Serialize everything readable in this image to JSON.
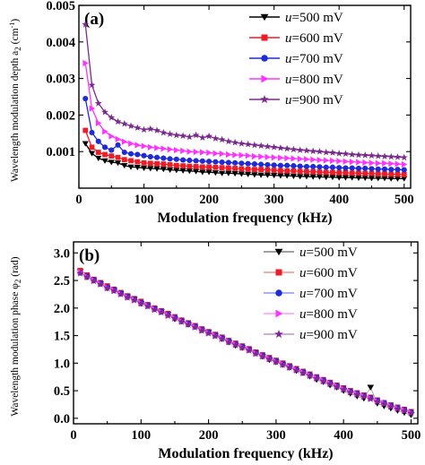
{
  "chart_data": [
    {
      "type": "line",
      "panel_label": "(a)",
      "xlabel": "Modulation frequency (kHz)",
      "ylabel": "Wavelength modulation depth a",
      "ylabel_sub": "2",
      "ylabel_unit_open": " (cm",
      "ylabel_unit_sup": "-1",
      "ylabel_unit_close": ")",
      "xlim": [
        0,
        510
      ],
      "ylim": [
        0,
        0.005
      ],
      "xticks": [
        0,
        100,
        200,
        300,
        400,
        500
      ],
      "xtick_labels": [
        "0",
        "100",
        "200",
        "300",
        "400",
        "500"
      ],
      "yticks": [
        0.001,
        0.002,
        0.003,
        0.004,
        0.005
      ],
      "ytick_labels": [
        "0.001",
        "0.002",
        "0.003",
        "0.004",
        "0.005"
      ],
      "legend_position": "top-right",
      "x": [
        10,
        20,
        30,
        40,
        50,
        60,
        70,
        80,
        90,
        100,
        110,
        120,
        130,
        140,
        150,
        160,
        170,
        180,
        190,
        200,
        210,
        220,
        230,
        240,
        250,
        260,
        270,
        280,
        290,
        300,
        310,
        320,
        330,
        340,
        350,
        360,
        370,
        380,
        390,
        400,
        410,
        420,
        430,
        440,
        450,
        460,
        470,
        480,
        490,
        500
      ],
      "series": [
        {
          "name_prefix": "u",
          "name_suffix": "=500 mV",
          "color": "#000000",
          "marker": "triangle-down",
          "values": [
            0.00122,
            0.00095,
            0.00082,
            0.00075,
            0.00071,
            0.00069,
            0.00062,
            0.00058,
            0.00057,
            0.00055,
            0.00054,
            0.00053,
            0.00052,
            0.0005,
            0.00049,
            0.00048,
            0.00047,
            0.00046,
            0.00044,
            0.00044,
            0.00042,
            0.00041,
            0.00041,
            0.0004,
            0.00039,
            0.00038,
            0.00037,
            0.00036,
            0.00036,
            0.00035,
            0.00034,
            0.00034,
            0.00033,
            0.00032,
            0.00032,
            0.00031,
            0.00031,
            0.0003,
            0.0003,
            0.00029,
            0.00029,
            0.00029,
            0.00028,
            0.00028,
            0.00027,
            0.00027,
            0.00027,
            0.00026,
            0.00026,
            0.00026
          ]
        },
        {
          "name_prefix": "u",
          "name_suffix": "=600 mV",
          "color": "#ee1c25",
          "marker": "square",
          "values": [
            0.00158,
            0.00112,
            0.00098,
            0.00092,
            0.00088,
            0.00084,
            0.00078,
            0.00075,
            0.00072,
            0.00069,
            0.00068,
            0.00067,
            0.00066,
            0.00064,
            0.00062,
            0.00061,
            0.0006,
            0.00059,
            0.00058,
            0.00058,
            0.00057,
            0.00056,
            0.00055,
            0.00054,
            0.00053,
            0.00052,
            0.00051,
            0.00051,
            0.0005,
            0.00049,
            0.00048,
            0.00047,
            0.00047,
            0.00046,
            0.00045,
            0.00045,
            0.00044,
            0.00043,
            0.00043,
            0.00042,
            0.00042,
            0.00041,
            0.00041,
            0.0004,
            0.0004,
            0.00039,
            0.00039,
            0.00038,
            0.00038,
            0.00037
          ]
        },
        {
          "name_prefix": "u",
          "name_suffix": "=700 mV",
          "color": "#1f2bd4",
          "marker": "circle",
          "values": [
            0.00245,
            0.00152,
            0.00128,
            0.00112,
            0.00104,
            0.00118,
            0.00098,
            0.00094,
            0.00092,
            0.00089,
            0.00086,
            0.00084,
            0.00082,
            0.0008,
            0.00079,
            0.00077,
            0.00076,
            0.00075,
            0.00074,
            0.00073,
            0.00072,
            0.00071,
            0.0007,
            0.00069,
            0.00068,
            0.00067,
            0.00066,
            0.00065,
            0.00064,
            0.00063,
            0.00062,
            0.00062,
            0.00061,
            0.0006,
            0.00059,
            0.00059,
            0.00058,
            0.00057,
            0.00057,
            0.00056,
            0.00055,
            0.00055,
            0.00054,
            0.00054,
            0.00053,
            0.00052,
            0.00052,
            0.00051,
            0.00051,
            0.0005
          ]
        },
        {
          "name_prefix": "u",
          "name_suffix": "=800 mV",
          "color": "#ff33ff",
          "marker": "triangle-right",
          "values": [
            0.00342,
            0.00218,
            0.00178,
            0.00155,
            0.00142,
            0.00134,
            0.00127,
            0.00122,
            0.00118,
            0.00115,
            0.00112,
            0.0011,
            0.00108,
            0.00106,
            0.00104,
            0.00102,
            0.001,
            0.00099,
            0.00098,
            0.00097,
            0.00095,
            0.00094,
            0.00092,
            0.00091,
            0.0009,
            0.00089,
            0.00087,
            0.00086,
            0.00085,
            0.00084,
            0.00083,
            0.00082,
            0.00081,
            0.0008,
            0.00079,
            0.00078,
            0.00077,
            0.00076,
            0.00075,
            0.00074,
            0.00073,
            0.00072,
            0.00071,
            0.0007,
            0.00069,
            0.00068,
            0.00068,
            0.00067,
            0.00066,
            0.00065
          ]
        },
        {
          "name_prefix": "u",
          "name_suffix": "=900 mV",
          "color": "#7a2a8c",
          "marker": "star",
          "values": [
            0.00448,
            0.00282,
            0.00232,
            0.00208,
            0.00193,
            0.00182,
            0.00176,
            0.0017,
            0.00165,
            0.0016,
            0.00162,
            0.00158,
            0.00152,
            0.00148,
            0.00145,
            0.00143,
            0.0014,
            0.00145,
            0.00138,
            0.00142,
            0.00136,
            0.00133,
            0.00128,
            0.00125,
            0.00122,
            0.0012,
            0.00118,
            0.00116,
            0.00114,
            0.00112,
            0.0011,
            0.00108,
            0.00106,
            0.00104,
            0.00103,
            0.00101,
            0.001,
            0.00098,
            0.00097,
            0.00095,
            0.00094,
            0.00092,
            0.00091,
            0.0009,
            0.00089,
            0.00088,
            0.00087,
            0.00086,
            0.00085,
            0.00084
          ]
        }
      ]
    },
    {
      "type": "scatter",
      "panel_label": "(b)",
      "xlabel": "Modulation frequency (kHz)",
      "ylabel": "Wavelength modulation phase φ",
      "ylabel_sub": "2",
      "ylabel_unit_open": " (rad)",
      "ylabel_unit_sup": "",
      "ylabel_unit_close": "",
      "xlim": [
        0,
        510
      ],
      "ylim": [
        -0.1,
        3.2
      ],
      "xticks": [
        0,
        100,
        200,
        300,
        400,
        500
      ],
      "xtick_labels": [
        "0",
        "100",
        "200",
        "300",
        "400",
        "500"
      ],
      "yticks": [
        0.0,
        0.5,
        1.0,
        1.5,
        2.0,
        2.5,
        3.0
      ],
      "ytick_labels": [
        "0.0",
        "0.5",
        "1.0",
        "1.5",
        "2.0",
        "2.5",
        "3.0"
      ],
      "legend_position": "top-right",
      "x": [
        10,
        20,
        30,
        40,
        50,
        60,
        70,
        80,
        90,
        100,
        110,
        120,
        130,
        140,
        150,
        160,
        170,
        180,
        190,
        200,
        210,
        220,
        230,
        240,
        250,
        260,
        270,
        280,
        290,
        300,
        310,
        320,
        330,
        340,
        350,
        360,
        370,
        380,
        390,
        400,
        410,
        420,
        430,
        440,
        450,
        460,
        470,
        480,
        490,
        500
      ],
      "series": [
        {
          "name_prefix": "u",
          "name_suffix": "=500 mV",
          "color": "#000000",
          "marker": "triangle-down",
          "values": [
            2.66,
            2.56,
            2.5,
            2.44,
            2.36,
            2.32,
            2.26,
            2.2,
            2.16,
            2.08,
            2.04,
            1.98,
            1.93,
            1.88,
            1.8,
            1.76,
            1.7,
            1.66,
            1.6,
            1.56,
            1.5,
            1.44,
            1.38,
            1.32,
            1.28,
            1.24,
            1.18,
            1.12,
            1.06,
            1.02,
            0.97,
            0.92,
            0.86,
            0.82,
            0.76,
            0.7,
            0.66,
            0.6,
            0.56,
            0.5,
            0.45,
            0.4,
            0.36,
            0.56,
            0.27,
            0.22,
            0.18,
            0.14,
            0.1,
            0.06
          ]
        },
        {
          "name_prefix": "u",
          "name_suffix": "=600 mV",
          "color": "#ee1c25",
          "marker": "square",
          "values": [
            2.68,
            2.6,
            2.52,
            2.46,
            2.4,
            2.34,
            2.28,
            2.22,
            2.17,
            2.12,
            2.06,
            2.0,
            1.95,
            1.9,
            1.84,
            1.78,
            1.73,
            1.68,
            1.62,
            1.57,
            1.52,
            1.47,
            1.41,
            1.36,
            1.31,
            1.26,
            1.2,
            1.15,
            1.1,
            1.05,
            1.0,
            0.95,
            0.9,
            0.85,
            0.8,
            0.75,
            0.7,
            0.65,
            0.6,
            0.55,
            0.5,
            0.46,
            0.42,
            0.38,
            0.33,
            0.28,
            0.24,
            0.2,
            0.16,
            0.12
          ]
        },
        {
          "name_prefix": "u",
          "name_suffix": "=700 mV",
          "color": "#1f2bd4",
          "marker": "circle",
          "values": [
            2.64,
            2.58,
            2.51,
            2.45,
            2.38,
            2.33,
            2.27,
            2.21,
            2.16,
            2.1,
            2.05,
            1.99,
            1.94,
            1.88,
            1.83,
            1.77,
            1.72,
            1.67,
            1.61,
            1.56,
            1.51,
            1.46,
            1.4,
            1.35,
            1.3,
            1.25,
            1.19,
            1.14,
            1.09,
            1.04,
            0.99,
            0.94,
            0.89,
            0.84,
            0.79,
            0.74,
            0.69,
            0.64,
            0.59,
            0.54,
            0.49,
            0.45,
            0.41,
            0.37,
            0.32,
            0.28,
            0.23,
            0.19,
            0.15,
            0.11
          ]
        },
        {
          "name_prefix": "u",
          "name_suffix": "=800 mV",
          "color": "#ff33ff",
          "marker": "triangle-right",
          "values": [
            2.65,
            2.57,
            2.5,
            2.44,
            2.37,
            2.32,
            2.26,
            2.2,
            2.15,
            2.09,
            2.04,
            1.98,
            1.93,
            1.87,
            1.82,
            1.76,
            1.71,
            1.66,
            1.6,
            1.55,
            1.5,
            1.45,
            1.39,
            1.34,
            1.29,
            1.24,
            1.18,
            1.13,
            1.08,
            1.03,
            0.98,
            0.93,
            0.88,
            0.83,
            0.78,
            0.73,
            0.68,
            0.63,
            0.58,
            0.53,
            0.48,
            0.44,
            0.4,
            0.36,
            0.31,
            0.27,
            0.22,
            0.18,
            0.14,
            0.1
          ]
        },
        {
          "name_prefix": "u",
          "name_suffix": "=900 mV",
          "color": "#7a2a8c",
          "marker": "star",
          "values": [
            2.63,
            2.56,
            2.49,
            2.43,
            2.36,
            2.31,
            2.25,
            2.19,
            2.14,
            2.08,
            2.03,
            1.97,
            1.92,
            1.86,
            1.81,
            1.75,
            1.7,
            1.65,
            1.59,
            1.54,
            1.49,
            1.44,
            1.38,
            1.33,
            1.28,
            1.23,
            1.17,
            1.12,
            1.07,
            1.02,
            0.97,
            0.92,
            0.87,
            0.82,
            0.77,
            0.72,
            0.67,
            0.62,
            0.57,
            0.52,
            0.47,
            0.43,
            0.39,
            0.35,
            0.3,
            0.26,
            0.21,
            0.17,
            0.13,
            0.09
          ]
        }
      ]
    }
  ]
}
